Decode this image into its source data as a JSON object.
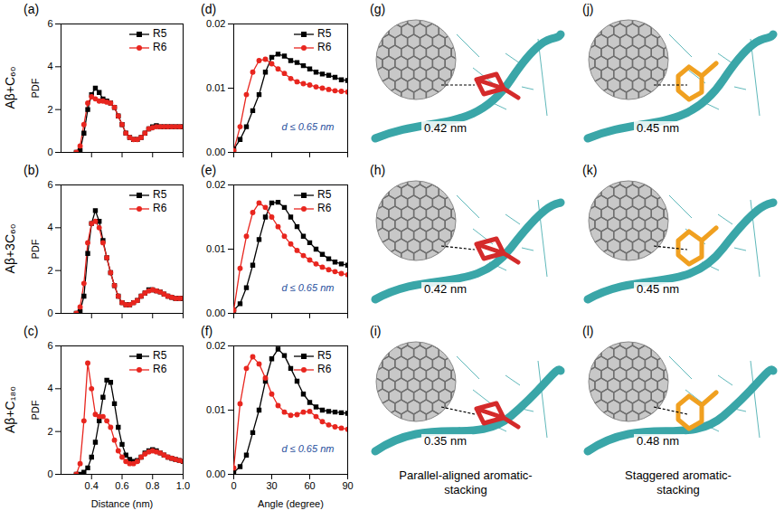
{
  "chart_data": [
    {
      "label": "(a)",
      "type": "line",
      "x": [
        0.3,
        0.325,
        0.35,
        0.375,
        0.4,
        0.425,
        0.45,
        0.475,
        0.5,
        0.525,
        0.55,
        0.575,
        0.6,
        0.625,
        0.65,
        0.675,
        0.7,
        0.725,
        0.75,
        0.775,
        0.8,
        0.825,
        0.85,
        0.875,
        0.9,
        0.925,
        0.95,
        0.975,
        1.0
      ],
      "series": [
        {
          "name": "R5",
          "color": "#000000",
          "marker": "square",
          "values": [
            0,
            0.1,
            0.9,
            2.0,
            2.7,
            3.0,
            2.8,
            2.5,
            2.4,
            2.3,
            2.1,
            1.7,
            1.3,
            0.9,
            0.7,
            0.6,
            0.6,
            0.7,
            0.9,
            1.1,
            1.2,
            1.25,
            1.2,
            1.2,
            1.2,
            1.2,
            1.2,
            1.2,
            1.2
          ]
        },
        {
          "name": "R6",
          "color": "#e8261f",
          "marker": "circle",
          "values": [
            0,
            0.3,
            1.3,
            2.3,
            2.6,
            2.5,
            2.4,
            2.4,
            2.35,
            2.3,
            2.1,
            1.7,
            1.3,
            0.9,
            0.7,
            0.6,
            0.6,
            0.7,
            0.9,
            1.1,
            1.15,
            1.2,
            1.2,
            1.2,
            1.2,
            1.2,
            1.2,
            1.2,
            1.2
          ]
        }
      ],
      "xlim": [
        0.2,
        1.0
      ],
      "xticks": [
        0.4,
        0.6,
        0.8,
        {
          "value": 1.0,
          "label": "1.0"
        }
      ],
      "ylim": [
        0,
        6
      ],
      "yticks": [
        0,
        2,
        4,
        6
      ],
      "ylabel": "PDF",
      "legend": "upper right",
      "tick_labels": "y"
    },
    {
      "label": "(b)",
      "type": "line",
      "x": [
        0.3,
        0.325,
        0.35,
        0.375,
        0.4,
        0.425,
        0.45,
        0.475,
        0.5,
        0.525,
        0.55,
        0.575,
        0.6,
        0.625,
        0.65,
        0.675,
        0.7,
        0.725,
        0.75,
        0.775,
        0.8,
        0.825,
        0.85,
        0.875,
        0.9,
        0.925,
        0.95,
        0.975,
        1.0
      ],
      "series": [
        {
          "name": "R5",
          "color": "#000000",
          "marker": "square",
          "values": [
            0,
            0.1,
            0.8,
            2.8,
            4.2,
            4.8,
            4.3,
            3.4,
            2.6,
            1.9,
            1.3,
            0.8,
            0.5,
            0.4,
            0.4,
            0.5,
            0.6,
            0.8,
            0.95,
            1.1,
            1.1,
            1.05,
            1.0,
            0.9,
            0.8,
            0.75,
            0.7,
            0.7,
            0.7
          ]
        },
        {
          "name": "R6",
          "color": "#e8261f",
          "marker": "circle",
          "values": [
            0,
            0.3,
            1.4,
            3.3,
            4.2,
            4.3,
            4.0,
            3.3,
            2.6,
            1.9,
            1.3,
            0.8,
            0.5,
            0.4,
            0.4,
            0.5,
            0.6,
            0.8,
            0.95,
            1.05,
            1.1,
            1.05,
            1.0,
            0.9,
            0.8,
            0.75,
            0.7,
            0.7,
            0.7
          ]
        }
      ],
      "xlim": [
        0.2,
        1.0
      ],
      "xticks": [
        0.4,
        0.6,
        0.8,
        {
          "value": 1.0,
          "label": "1.0"
        }
      ],
      "ylim": [
        0,
        6
      ],
      "yticks": [
        0,
        2,
        4,
        6
      ],
      "ylabel": "PDF",
      "legend": "upper right",
      "tick_labels": "y"
    },
    {
      "label": "(c)",
      "type": "line",
      "x": [
        0.3,
        0.325,
        0.35,
        0.375,
        0.4,
        0.425,
        0.45,
        0.475,
        0.5,
        0.525,
        0.55,
        0.575,
        0.6,
        0.625,
        0.65,
        0.675,
        0.7,
        0.725,
        0.75,
        0.775,
        0.8,
        0.825,
        0.85,
        0.875,
        0.9,
        0.925,
        0.95,
        0.975,
        1.0
      ],
      "series": [
        {
          "name": "R5",
          "color": "#000000",
          "marker": "square",
          "values": [
            0,
            0,
            0.1,
            0.3,
            0.8,
            1.5,
            2.5,
            3.6,
            4.4,
            4.3,
            3.3,
            2.2,
            1.4,
            0.9,
            0.7,
            0.6,
            0.65,
            0.8,
            1.0,
            1.1,
            1.15,
            1.1,
            1.0,
            0.9,
            0.8,
            0.75,
            0.7,
            0.65,
            0.6
          ]
        },
        {
          "name": "R6",
          "color": "#e8261f",
          "marker": "circle",
          "values": [
            0,
            0.5,
            2.5,
            5.2,
            4.0,
            2.8,
            2.7,
            2.7,
            2.5,
            2.2,
            1.6,
            1.1,
            0.8,
            0.6,
            0.5,
            0.5,
            0.6,
            0.8,
            0.95,
            1.05,
            1.1,
            1.05,
            1.0,
            0.9,
            0.8,
            0.75,
            0.7,
            0.65,
            0.6
          ]
        }
      ],
      "xlim": [
        0.2,
        1.0
      ],
      "xticks": [
        0.4,
        0.6,
        0.8,
        {
          "value": 1.0,
          "label": "1.0"
        }
      ],
      "ylim": [
        0,
        6
      ],
      "yticks": [
        0,
        2,
        4,
        6
      ],
      "ylabel": "PDF",
      "xlabel": "Distance (nm)",
      "legend": "upper right"
    },
    {
      "label": "(d)",
      "type": "line",
      "x": [
        0,
        5,
        10,
        15,
        20,
        25,
        30,
        35,
        40,
        45,
        50,
        55,
        60,
        65,
        70,
        75,
        80,
        85,
        90
      ],
      "series": [
        {
          "name": "R5",
          "color": "#000000",
          "marker": "square",
          "values": [
            0.0005,
            0.002,
            0.004,
            0.0065,
            0.009,
            0.0125,
            0.0148,
            0.0153,
            0.015,
            0.0143,
            0.014,
            0.0135,
            0.013,
            0.0125,
            0.0122,
            0.012,
            0.0117,
            0.0113,
            0.0112
          ]
        },
        {
          "name": "R6",
          "color": "#e8261f",
          "marker": "circle",
          "values": [
            0.0003,
            0.004,
            0.009,
            0.0125,
            0.0143,
            0.0145,
            0.0138,
            0.013,
            0.0123,
            0.0115,
            0.011,
            0.0107,
            0.0105,
            0.0102,
            0.01,
            0.0098,
            0.0096,
            0.0095,
            0.0094
          ]
        }
      ],
      "xlim": [
        0,
        90
      ],
      "xticks": [
        0,
        30,
        60,
        90
      ],
      "ylim": [
        0,
        0.02
      ],
      "yticks": [
        {
          "value": 0,
          "label": "0.00"
        },
        {
          "value": 0.01,
          "label": "0.01"
        },
        {
          "value": 0.02,
          "label": "0.02"
        }
      ],
      "annotation": "d ≤ 0.65 nm",
      "legend": "upper right",
      "tick_labels": "y"
    },
    {
      "label": "(e)",
      "type": "line",
      "x": [
        0,
        5,
        10,
        15,
        20,
        25,
        30,
        35,
        40,
        45,
        50,
        55,
        60,
        65,
        70,
        75,
        80,
        85,
        90
      ],
      "series": [
        {
          "name": "R5",
          "color": "#000000",
          "marker": "square",
          "values": [
            0.0005,
            0.0015,
            0.004,
            0.0075,
            0.0115,
            0.015,
            0.0172,
            0.0173,
            0.0165,
            0.015,
            0.0135,
            0.012,
            0.011,
            0.01,
            0.0092,
            0.0085,
            0.008,
            0.0077,
            0.0075
          ]
        },
        {
          "name": "R6",
          "color": "#e8261f",
          "marker": "circle",
          "values": [
            0.0005,
            0.007,
            0.012,
            0.0157,
            0.0172,
            0.0165,
            0.015,
            0.0135,
            0.012,
            0.0108,
            0.0098,
            0.009,
            0.0083,
            0.0077,
            0.0072,
            0.0068,
            0.0065,
            0.0062,
            0.006
          ]
        }
      ],
      "xlim": [
        0,
        90
      ],
      "xticks": [
        0,
        30,
        60,
        90
      ],
      "ylim": [
        0,
        0.02
      ],
      "yticks": [
        {
          "value": 0,
          "label": "0.00"
        },
        {
          "value": 0.01,
          "label": "0.01"
        },
        {
          "value": 0.02,
          "label": "0.02"
        }
      ],
      "annotation": "d ≤ 0.65 nm",
      "legend": "upper right",
      "tick_labels": "y"
    },
    {
      "label": "(f)",
      "type": "line",
      "x": [
        0,
        5,
        10,
        15,
        20,
        25,
        30,
        35,
        40,
        45,
        50,
        55,
        60,
        65,
        70,
        75,
        80,
        85,
        90
      ],
      "series": [
        {
          "name": "R5",
          "color": "#000000",
          "marker": "square",
          "values": [
            0.0003,
            0.0012,
            0.003,
            0.0065,
            0.01,
            0.0145,
            0.018,
            0.0195,
            0.0185,
            0.0165,
            0.0145,
            0.0125,
            0.0112,
            0.0105,
            0.01,
            0.0098,
            0.0097,
            0.0096,
            0.0095
          ]
        },
        {
          "name": "R6",
          "color": "#e8261f",
          "marker": "circle",
          "values": [
            0.001,
            0.011,
            0.0165,
            0.0183,
            0.0172,
            0.015,
            0.0125,
            0.0107,
            0.0097,
            0.0092,
            0.0093,
            0.0097,
            0.0098,
            0.009,
            0.0082,
            0.0077,
            0.0074,
            0.0072,
            0.007
          ]
        }
      ],
      "xlim": [
        0,
        90
      ],
      "xticks": [
        0,
        30,
        60,
        90
      ],
      "ylim": [
        0,
        0.02
      ],
      "yticks": [
        {
          "value": 0,
          "label": "0.00"
        },
        {
          "value": 0.01,
          "label": "0.01"
        },
        {
          "value": 0.02,
          "label": "0.02"
        }
      ],
      "xlabel": "Angle (degree)",
      "annotation": "d ≤ 0.65 nm",
      "legend": "upper right"
    }
  ],
  "row_labels": [
    "Aβ+C₆₀",
    "Aβ+3C₆₀",
    "Aβ+C₁₈₀"
  ],
  "image_panels": [
    {
      "label": "(g)",
      "distance_label": "0.42 nm"
    },
    {
      "label": "(h)",
      "distance_label": "0.42 nm"
    },
    {
      "label": "(i)",
      "distance_label": "0.35 nm"
    },
    {
      "label": "(j)",
      "distance_label": "0.45 nm"
    },
    {
      "label": "(k)",
      "distance_label": "0.45 nm"
    },
    {
      "label": "(l)",
      "distance_label": "0.48 nm"
    }
  ],
  "image_captions": [
    "Parallel-aligned aromatic-stacking",
    "Staggered aromatic-stacking"
  ]
}
